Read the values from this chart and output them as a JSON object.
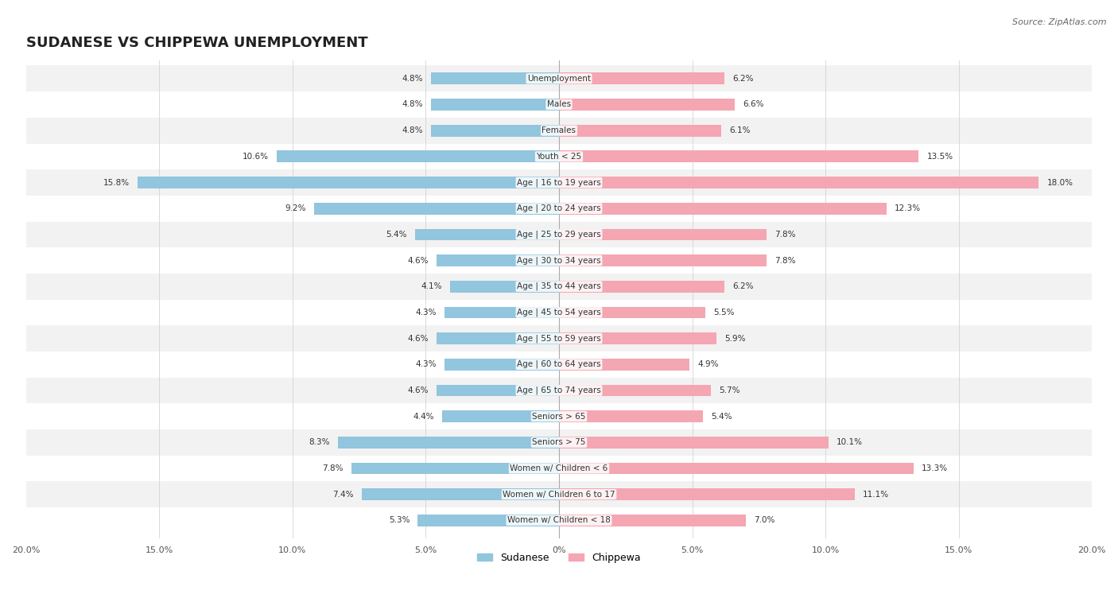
{
  "title": "SUDANESE VS CHIPPEWA UNEMPLOYMENT",
  "source": "Source: ZipAtlas.com",
  "categories": [
    "Unemployment",
    "Males",
    "Females",
    "Youth < 25",
    "Age | 16 to 19 years",
    "Age | 20 to 24 years",
    "Age | 25 to 29 years",
    "Age | 30 to 34 years",
    "Age | 35 to 44 years",
    "Age | 45 to 54 years",
    "Age | 55 to 59 years",
    "Age | 60 to 64 years",
    "Age | 65 to 74 years",
    "Seniors > 65",
    "Seniors > 75",
    "Women w/ Children < 6",
    "Women w/ Children 6 to 17",
    "Women w/ Children < 18"
  ],
  "sudanese": [
    4.8,
    4.8,
    4.8,
    10.6,
    15.8,
    9.2,
    5.4,
    4.6,
    4.1,
    4.3,
    4.6,
    4.3,
    4.6,
    4.4,
    8.3,
    7.8,
    7.4,
    5.3
  ],
  "chippewa": [
    6.2,
    6.6,
    6.1,
    13.5,
    18.0,
    12.3,
    7.8,
    7.8,
    6.2,
    5.5,
    5.9,
    4.9,
    5.7,
    5.4,
    10.1,
    13.3,
    11.1,
    7.0
  ],
  "sudanese_color": "#92c5de",
  "chippewa_color": "#f4a6b2",
  "bg_row_even": "#f2f2f2",
  "bg_row_odd": "#ffffff",
  "max_val": 20.0,
  "bar_height": 0.45,
  "legend_sudanese": "Sudanese",
  "legend_chippewa": "Chippewa"
}
